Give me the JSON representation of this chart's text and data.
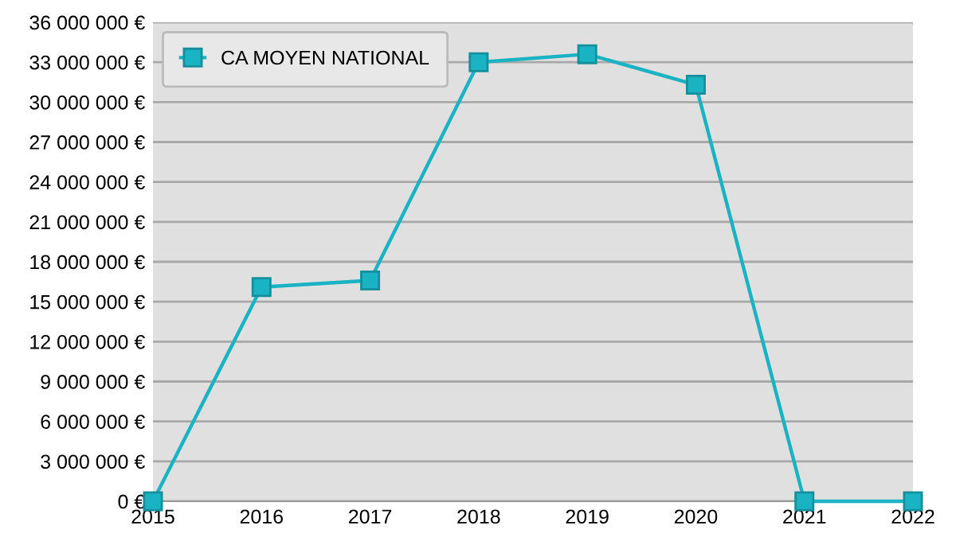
{
  "chart_data": {
    "type": "line",
    "categories": [
      "2015",
      "2016",
      "2017",
      "2018",
      "2019",
      "2020",
      "2021",
      "2022"
    ],
    "series": [
      {
        "name": "CA MOYEN NATIONAL",
        "color": "#1ab3c4",
        "values": [
          0,
          16100000,
          16600000,
          33000000,
          33600000,
          31300000,
          0,
          0
        ]
      }
    ],
    "ylim": [
      0,
      36000000
    ],
    "yticks": [
      {
        "value": 0,
        "label": "0 €"
      },
      {
        "value": 3000000,
        "label": "3 000 000 €"
      },
      {
        "value": 6000000,
        "label": "6 000 000 €"
      },
      {
        "value": 9000000,
        "label": "9 000 000 €"
      },
      {
        "value": 12000000,
        "label": "12 000 000 €"
      },
      {
        "value": 15000000,
        "label": "15 000 000 €"
      },
      {
        "value": 18000000,
        "label": "18 000 000 €"
      },
      {
        "value": 21000000,
        "label": "21 000 000 €"
      },
      {
        "value": 24000000,
        "label": "24 000 000 €"
      },
      {
        "value": 27000000,
        "label": "27 000 000 €"
      },
      {
        "value": 30000000,
        "label": "30 000 000 €"
      },
      {
        "value": 33000000,
        "label": "33 000 000 €"
      },
      {
        "value": 36000000,
        "label": "36 000 000 €"
      }
    ],
    "grid": "y",
    "legend": "top left",
    "marker": "square",
    "line_style": "solid"
  }
}
